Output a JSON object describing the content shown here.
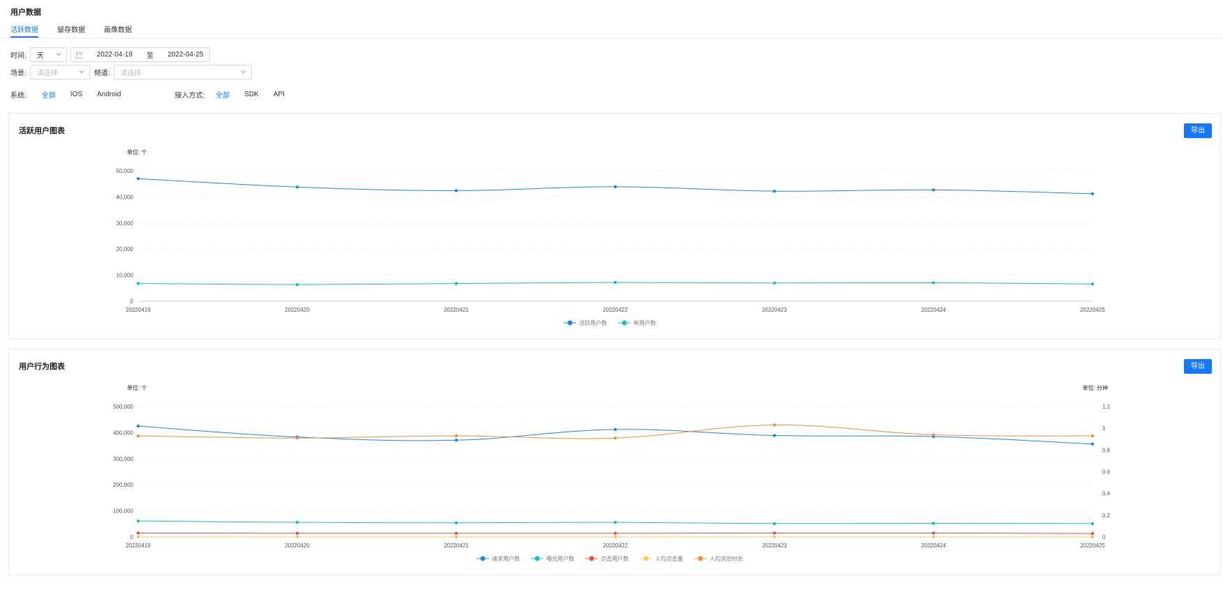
{
  "page": {
    "title": "用户数据",
    "tabs": [
      {
        "label": "活跃数据",
        "active": true
      },
      {
        "label": "留存数据",
        "active": false
      },
      {
        "label": "画像数据",
        "active": false
      }
    ]
  },
  "filters": {
    "time_label": "时间:",
    "time_unit": "天",
    "date_start": "2022-04-19",
    "date_sep": "至",
    "date_end": "2022-04-25",
    "scene_label": "场景:",
    "scene_placeholder": "请选择",
    "channel_label": "频道:",
    "channel_placeholder": "请选择",
    "system_label": "系统:",
    "system_options": [
      {
        "label": "全部",
        "active": true
      },
      {
        "label": "IOS",
        "active": false
      },
      {
        "label": "Android",
        "active": false
      }
    ],
    "access_label": "接入方式:",
    "access_options": [
      {
        "label": "全部",
        "active": true
      },
      {
        "label": "SDK",
        "active": false
      },
      {
        "label": "API",
        "active": false
      }
    ]
  },
  "cards": {
    "active": {
      "title": "活跃用户图表",
      "export_label": "导出"
    },
    "behavior": {
      "title": "用户行为图表",
      "export_label": "导出"
    }
  },
  "chart_data": [
    {
      "type": "line",
      "ylabel": "单位: 个",
      "categories": [
        "20220419",
        "20220420",
        "20220421",
        "20220422",
        "20220423",
        "20220424",
        "20220425"
      ],
      "yticks": [
        "0",
        "10,000",
        "20,000",
        "30,000",
        "40,000",
        "50,000"
      ],
      "ylim": [
        0,
        50000
      ],
      "legend_position": "bottom-center",
      "grid": true,
      "series": [
        {
          "name": "活跃用户数",
          "color": "#1e88e5",
          "values": [
            47000,
            43800,
            42400,
            43900,
            42200,
            42700,
            41200
          ]
        },
        {
          "name": "新用户数",
          "color": "#13c2c2",
          "values": [
            6800,
            6400,
            6800,
            7200,
            7000,
            7100,
            6600
          ]
        }
      ]
    },
    {
      "type": "line",
      "ylabel": "单位: 个",
      "y2label": "单位: 分钟",
      "categories": [
        "20220419",
        "20220420",
        "20220421",
        "20220422",
        "20220423",
        "20220424",
        "20220425"
      ],
      "yticks": [
        "0",
        "100,000",
        "200,000",
        "300,000",
        "400,000",
        "500,000"
      ],
      "ylim": [
        0,
        500000
      ],
      "y2ticks": [
        "0",
        "0.2",
        "0.4",
        "0.6",
        "0.8",
        "1",
        "1.2"
      ],
      "y2lim": [
        0,
        1.2
      ],
      "legend_position": "bottom-center",
      "grid": true,
      "series": [
        {
          "name": "请求用户数",
          "color": "#1e88e5",
          "axis": "left",
          "values": [
            425000,
            383000,
            371000,
            412000,
            389000,
            385000,
            356000
          ]
        },
        {
          "name": "曝光用户数",
          "color": "#13c2c2",
          "axis": "left",
          "values": [
            61000,
            56000,
            54000,
            56000,
            51000,
            52000,
            51000
          ]
        },
        {
          "name": "点击用户数",
          "color": "#f5484e",
          "axis": "left",
          "values": [
            15000,
            14000,
            14000,
            14000,
            15000,
            15000,
            13000
          ]
        },
        {
          "name": "人均点击量",
          "color": "#fac858",
          "axis": "right",
          "values": [
            0,
            0,
            0,
            0,
            0,
            0,
            0
          ]
        },
        {
          "name": "人均浏览时长",
          "color": "#fa8c35",
          "axis": "right",
          "values": [
            0.93,
            0.91,
            0.93,
            0.91,
            1.03,
            0.94,
            0.93
          ]
        }
      ]
    }
  ]
}
